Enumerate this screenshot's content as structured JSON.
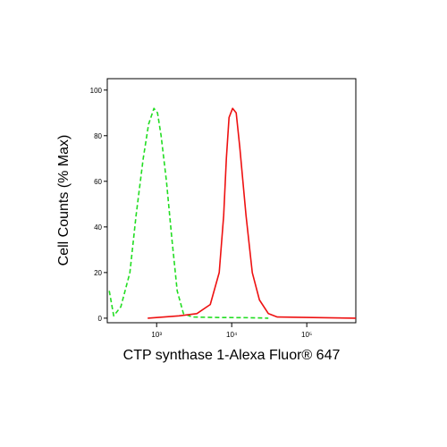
{
  "chart_data": {
    "type": "line",
    "xlabel": "CTP synthase 1-Alexa Fluor® 647",
    "ylabel": "Cell Counts (% Max)",
    "xscale": "log",
    "xlim": [
      220,
      450000
    ],
    "xticks": [
      {
        "value": 1000,
        "label": "10³"
      },
      {
        "value": 10000,
        "label": "10⁴"
      },
      {
        "value": 100000,
        "label": "10⁵"
      }
    ],
    "ylim": [
      -2,
      105
    ],
    "yticks": [
      0,
      20,
      40,
      60,
      80,
      100
    ],
    "series": [
      {
        "color": "#22dd22",
        "dash": true,
        "x": [
          234,
          268,
          334,
          440,
          532,
          663,
          781,
          921,
          1028,
          1147,
          1352,
          1594,
          1879,
          2276,
          2995,
          5946,
          17783,
          30765
        ],
        "values": [
          12,
          1,
          5,
          20,
          45,
          70,
          85,
          92,
          90,
          80,
          60,
          35,
          12,
          2,
          0.5,
          0.3,
          0.2,
          0
        ]
      },
      {
        "color": "#ee1111",
        "dash": false,
        "x": [
          760,
          1986,
          3435,
          5179,
          6808,
          7811,
          8485,
          9207,
          10280,
          11472,
          12800,
          15500,
          18790,
          23390,
          30760,
          40460,
          450000
        ],
        "values": [
          0,
          1,
          2,
          6,
          20,
          45,
          70,
          88,
          92,
          90,
          75,
          45,
          20,
          8,
          2,
          0.5,
          0
        ]
      }
    ]
  }
}
